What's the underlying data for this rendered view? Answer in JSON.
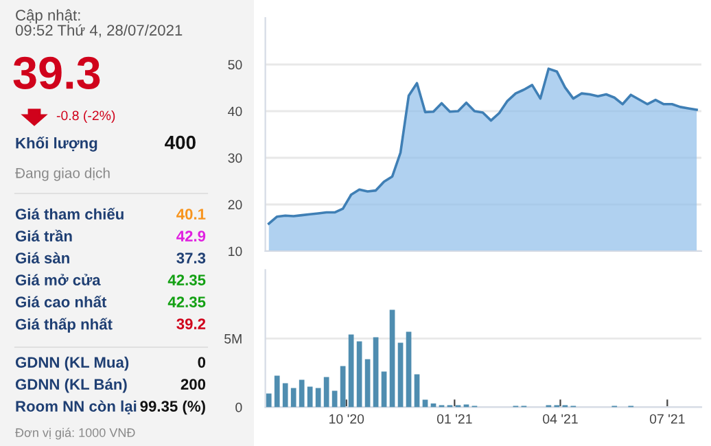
{
  "chart_data": [
    {
      "type": "other",
      "annotations": [
        "Cập nhật:",
        "09:52 Thứ 4, 28/07/2021",
        "39.3",
        "-0.8 (-2%)",
        "Khối lượng",
        "400",
        "Đang giao dịch",
        "Giá tham chiếu",
        "40.1",
        "Giá trần",
        "42.9",
        "Giá sàn",
        "37.3",
        "Giá mở cửa",
        "42.35",
        "Giá cao nhất",
        "42.35",
        "Giá thấp nhất",
        "39.2",
        "GDNN (KL Mua)",
        "0",
        "GDNN (KL Bán)",
        "200",
        "Room NN còn lại",
        "99.35 (%)",
        "Đơn vị giá: 1000 VNĐ"
      ],
      "colors": [
        "#555555",
        "#555555",
        "#d0021b",
        "#d0021b",
        "#1f3f73",
        "#111111",
        "#888888",
        "#1f3f73",
        "#f7941d",
        "#1f3f73",
        "#e020e0",
        "#1f3f73",
        "#1f3f73",
        "#1f3f73",
        "#13a013",
        "#1f3f73",
        "#13a013",
        "#1f3f73",
        "#d0021b",
        "#1f3f73",
        "#111111",
        "#1f3f73",
        "#111111",
        "#1f3f73",
        "#111111",
        "#888888"
      ]
    },
    {
      "type": "area",
      "xlim": [
        "2020-07-24",
        "2021-07-30"
      ],
      "ylim": [
        10,
        60
      ],
      "yticks": [
        10,
        20,
        30,
        40,
        50
      ],
      "grid": "y",
      "tick_labels": "y",
      "x": [
        "2020-07-27",
        "2020-08-03",
        "2020-08-10",
        "2020-08-17",
        "2020-08-24",
        "2020-08-31",
        "2020-09-07",
        "2020-09-14",
        "2020-09-21",
        "2020-09-28",
        "2020-10-05",
        "2020-10-12",
        "2020-10-19",
        "2020-10-26",
        "2020-11-02",
        "2020-11-09",
        "2020-11-16",
        "2020-11-23",
        "2020-11-30",
        "2020-12-07",
        "2020-12-14",
        "2020-12-21",
        "2020-12-28",
        "2021-01-04",
        "2021-01-11",
        "2021-01-18",
        "2021-01-25",
        "2021-02-01",
        "2021-02-08",
        "2021-02-15",
        "2021-02-22",
        "2021-03-01",
        "2021-03-08",
        "2021-03-15",
        "2021-03-22",
        "2021-03-29",
        "2021-04-05",
        "2021-04-12",
        "2021-04-19",
        "2021-04-26",
        "2021-05-03",
        "2021-05-10",
        "2021-05-17",
        "2021-05-24",
        "2021-05-31",
        "2021-06-07",
        "2021-06-14",
        "2021-06-21",
        "2021-06-28",
        "2021-07-05",
        "2021-07-12",
        "2021-07-19",
        "2021-07-26"
      ],
      "series": [
        {
          "color": "#3f7fb5",
          "values": [
            15.9,
            17.4,
            17.6,
            17.5,
            17.7,
            17.9,
            18.1,
            18.3,
            18.3,
            19.1,
            22.1,
            23.2,
            22.8,
            23.0,
            24.9,
            26.0,
            31.1,
            43.3,
            46.0,
            39.8,
            39.9,
            41.7,
            39.9,
            40.0,
            41.8,
            40.0,
            39.7,
            38.0,
            39.6,
            42.2,
            43.8,
            44.6,
            45.6,
            42.7,
            49.1,
            48.5,
            45.1,
            42.7,
            43.8,
            43.6,
            43.2,
            43.6,
            42.9,
            41.5,
            43.5,
            42.5,
            41.5,
            42.4,
            41.5,
            41.5,
            40.9,
            40.6,
            40.3
          ]
        }
      ]
    },
    {
      "type": "bar",
      "xlim": [
        "2020-07-24",
        "2021-07-30"
      ],
      "ylim": [
        0,
        10
      ],
      "yticks": [
        0,
        {
          "value": 5,
          "label": "5M"
        }
      ],
      "grid": "y",
      "xticks": [
        {
          "value": "2020-10-01",
          "label": "10 '20"
        },
        {
          "value": "2021-01-01",
          "label": "01 '21"
        },
        {
          "value": "2021-04-01",
          "label": "04 '21"
        },
        {
          "value": "2021-07-01",
          "label": "07 '21"
        }
      ],
      "x": [
        "2020-07-27",
        "2020-08-03",
        "2020-08-10",
        "2020-08-17",
        "2020-08-24",
        "2020-08-31",
        "2020-09-07",
        "2020-09-14",
        "2020-09-21",
        "2020-09-28",
        "2020-10-05",
        "2020-10-12",
        "2020-10-19",
        "2020-10-26",
        "2020-11-02",
        "2020-11-09",
        "2020-11-16",
        "2020-11-23",
        "2020-11-30",
        "2020-12-07",
        "2020-12-14",
        "2020-12-21",
        "2020-12-28",
        "2021-01-04",
        "2021-01-11",
        "2021-01-18",
        "2021-02-22",
        "2021-03-01",
        "2021-03-22",
        "2021-03-29",
        "2021-04-05",
        "2021-04-12",
        "2021-05-17",
        "2021-05-31"
      ],
      "series": [
        {
          "color": "#4f8db0",
          "values": [
            1.0,
            2.3,
            1.75,
            1.4,
            2.0,
            1.5,
            1.4,
            2.2,
            1.2,
            3.0,
            5.3,
            4.8,
            3.5,
            5.1,
            2.6,
            7.1,
            4.7,
            5.5,
            2.4,
            0.55,
            0.27,
            0.15,
            0.15,
            0.15,
            0.2,
            0.1,
            0.1,
            0.1,
            0.15,
            0.15,
            0.15,
            0.1,
            0.1,
            0.1
          ]
        }
      ]
    }
  ]
}
